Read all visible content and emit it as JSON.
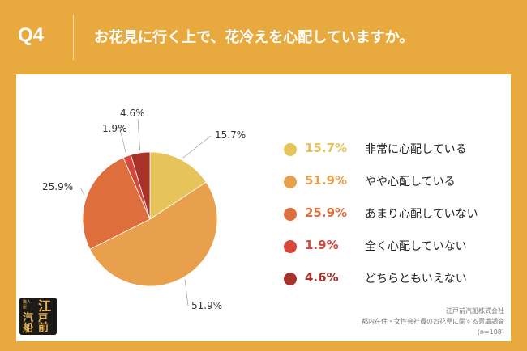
{
  "header": {
    "qnum": "Q4",
    "question": "お花見に行く上で、花冷えを心配していますか。"
  },
  "chart_data": {
    "type": "pie",
    "categories": [
      "非常に心配している",
      "やや心配している",
      "あまり心配していない",
      "全く心配していない",
      "どちらともいえない"
    ],
    "values": [
      15.7,
      51.9,
      25.9,
      1.9,
      4.6
    ],
    "value_labels": [
      "15.7%",
      "51.9%",
      "25.9%",
      "1.9%",
      "4.6%"
    ],
    "colors": [
      "#E6C45A",
      "#E8A04C",
      "#DE6E3C",
      "#D8473B",
      "#A8322A"
    ],
    "label_color": "#333333",
    "legend_position": "right"
  },
  "legend": [
    {
      "value": "15.7%",
      "label": "非常に心配している",
      "color": "#E6C45A"
    },
    {
      "value": "51.9%",
      "label": "やや心配している",
      "color": "#E8A04C"
    },
    {
      "value": "25.9%",
      "label": "あまり心配していない",
      "color": "#DE6E3C"
    },
    {
      "value": "1.9%",
      "label": "全く心配していない",
      "color": "#D8473B"
    },
    {
      "value": "4.6%",
      "label": "どちらともいえない",
      "color": "#A8322A"
    }
  ],
  "logo": {
    "small_text": "職人屋",
    "chars": [
      "江",
      "戸",
      "前",
      "汽",
      "船"
    ]
  },
  "footer": {
    "company": "江戸前汽船株式会社",
    "survey": "都内在住・女性会社員のお花見に関する意識調査",
    "n": "(n=108)"
  }
}
